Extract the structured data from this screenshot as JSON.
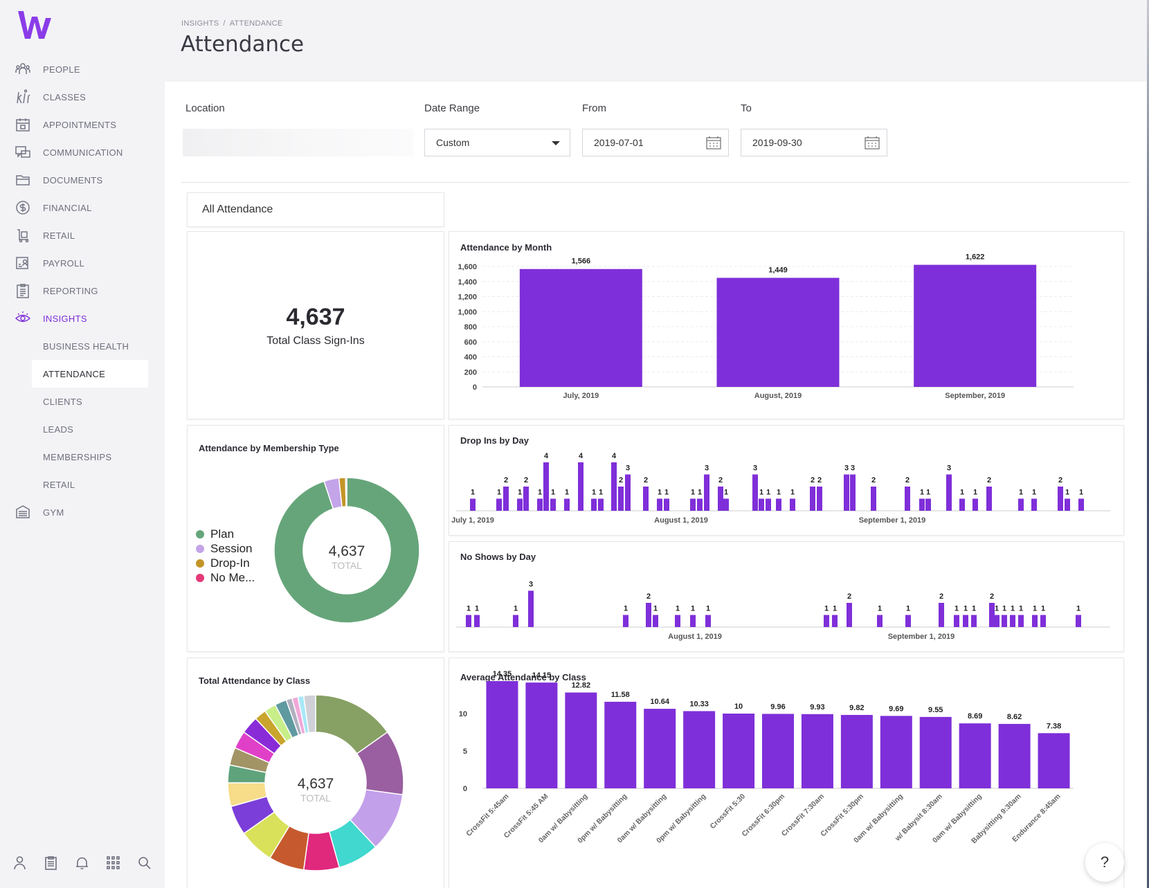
{
  "breadcrumb": [
    "INSIGHTS",
    "/",
    "ATTENDANCE"
  ],
  "page_title": "Attendance",
  "nav": [
    {
      "label": "PEOPLE",
      "icon": "people-icon"
    },
    {
      "label": "CLASSES",
      "icon": "classes-icon"
    },
    {
      "label": "APPOINTMENTS",
      "icon": "calendar-icon"
    },
    {
      "label": "COMMUNICATION",
      "icon": "chat-icon"
    },
    {
      "label": "DOCUMENTS",
      "icon": "folder-icon"
    },
    {
      "label": "FINANCIAL",
      "icon": "dollar-icon"
    },
    {
      "label": "RETAIL",
      "icon": "cart-icon"
    },
    {
      "label": "PAYROLL",
      "icon": "payroll-icon"
    },
    {
      "label": "REPORTING",
      "icon": "clipboard-icon"
    },
    {
      "label": "INSIGHTS",
      "icon": "eye-icon"
    }
  ],
  "nav_sub": [
    "BUSINESS HEALTH",
    "ATTENDANCE",
    "CLIENTS",
    "LEADS",
    "MEMBERSHIPS",
    "RETAIL"
  ],
  "nav_gym": {
    "label": "GYM",
    "icon": "building-icon"
  },
  "filters": {
    "location_label": "Location",
    "date_range_label": "Date Range",
    "date_range_value": "Custom",
    "from_label": "From",
    "from_value": "2019-07-01",
    "to_label": "To",
    "to_value": "2019-09-30"
  },
  "tab_label": "All Attendance",
  "total": {
    "value": "4,637",
    "label": "Total Class Sign-Ins"
  },
  "donut_total_label": "TOTAL",
  "accent": "#7f2fd9",
  "chart_data": [
    {
      "type": "bar",
      "title": "Attendance by Month",
      "categories": [
        "July, 2019",
        "August, 2019",
        "September, 2019"
      ],
      "values": [
        1566,
        1449,
        1622
      ],
      "value_labels": [
        "1,566",
        "1,449",
        "1,622"
      ],
      "ylim": [
        0,
        1600
      ],
      "yticks": [
        "0",
        "200",
        "400",
        "600",
        "800",
        "1,000",
        "1,200",
        "1,400",
        "1,600"
      ]
    },
    {
      "type": "pie",
      "title": "Attendance by Membership Type",
      "labels": [
        "Plan",
        "Session",
        "Drop-In",
        "No Me..."
      ],
      "colors": [
        "#66a57a",
        "#c3a4e8",
        "#c39427",
        "#e5397a"
      ],
      "values": [
        4317,
        151,
        67,
        12
      ],
      "center": "4,637"
    },
    {
      "type": "bar",
      "title": "Drop Ins by Day",
      "xtick_labels": [
        "July 1, 2019",
        "August 1, 2019",
        "September 1, 2019"
      ],
      "values": [
        1,
        1,
        2,
        1,
        2,
        1,
        4,
        1,
        1,
        4,
        1,
        1,
        4,
        2,
        3,
        2,
        1,
        1,
        1,
        1,
        3,
        2,
        1,
        3,
        1,
        1,
        1,
        1,
        2,
        2,
        3,
        3,
        2,
        2,
        1,
        1,
        3,
        1,
        1,
        2,
        1,
        1,
        2,
        1,
        1
      ]
    },
    {
      "type": "bar",
      "title": "No Shows by Day",
      "xtick_labels": [
        "August 1, 2019",
        "September 1, 2019"
      ],
      "values": [
        1,
        1,
        1,
        3,
        1,
        2,
        1,
        1,
        1,
        1,
        1,
        1,
        2,
        1,
        1,
        2,
        1,
        1,
        1,
        2,
        1,
        1,
        1,
        1,
        1,
        1,
        1
      ]
    },
    {
      "type": "pie",
      "title": "Total Attendance by Class",
      "center": "4,637",
      "colors": [
        "#87a064",
        "#9a5fa0",
        "#c3a0ea",
        "#40d8cf",
        "#e0287c",
        "#c65a2e",
        "#d9e15a",
        "#7b3ed8",
        "#f7dc8a",
        "#5fa37c",
        "#a39466",
        "#e040c8",
        "#8a2bd8",
        "#c9a52d",
        "#c8ee8a",
        "#5f9aa0",
        "#b0b0c0",
        "#f0a8d8",
        "#a8e8f8",
        "#d0d0d8"
      ],
      "values": [
        14,
        11,
        10,
        7,
        6,
        6,
        6,
        5,
        4,
        3,
        3,
        3,
        3,
        2,
        2,
        2,
        1,
        1,
        1,
        2
      ]
    },
    {
      "type": "bar",
      "title": "Average Attendance by Class",
      "categories": [
        "CrossFit 5:45am",
        "CrossFit 5:45 AM",
        "0am w/ Babysitting",
        "0pm w/ Babysitting",
        "0am w/ Babysitting",
        "0pm w/ Babysitting",
        "CrossFit 5:30",
        "CrossFit 6:30pm",
        "CrossFit 7:30am",
        "CrossFit 5:30pm",
        "0am w/ Babysitting",
        "w/ Babysit 8:30am",
        "0am w/ Babysitting",
        "Babysitting 9:30am",
        "Endurance 8:45am"
      ],
      "values": [
        14.35,
        14.15,
        12.82,
        11.58,
        10.64,
        10.33,
        10,
        9.96,
        9.93,
        9.82,
        9.69,
        9.55,
        8.69,
        8.62,
        7.38
      ],
      "value_labels": [
        "14.35",
        "14.15",
        "12.82",
        "11.58",
        "10.64",
        "10.33",
        "10",
        "9.96",
        "9.93",
        "9.82",
        "9.69",
        "9.55",
        "8.69",
        "8.62",
        "7.38"
      ],
      "ylim": [
        0,
        15
      ],
      "yticks": [
        "0",
        "5",
        "10"
      ]
    }
  ],
  "help_label": "?"
}
